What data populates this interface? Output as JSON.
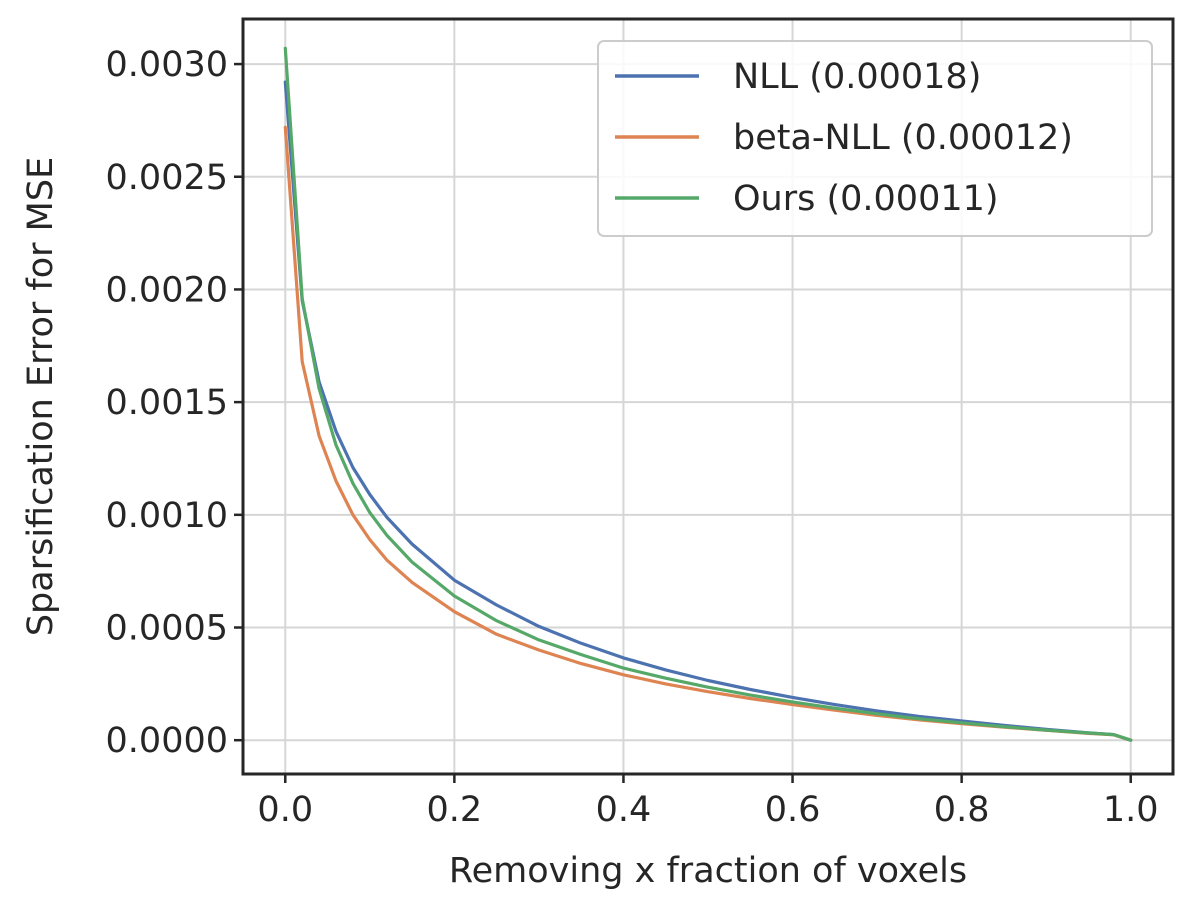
{
  "chart_data": {
    "type": "line",
    "title": "",
    "xlabel": "Removing x fraction of voxels",
    "ylabel": "Sparsification Error for MSE",
    "xlim": [
      -0.05,
      1.05
    ],
    "ylim": [
      -0.00015,
      0.0032
    ],
    "xticks": [
      0.0,
      0.2,
      0.4,
      0.6,
      0.8,
      1.0
    ],
    "xtick_labels": [
      "0.0",
      "0.2",
      "0.4",
      "0.6",
      "0.8",
      "1.0"
    ],
    "yticks": [
      0.0,
      0.0005,
      0.001,
      0.0015,
      0.002,
      0.0025,
      0.003
    ],
    "ytick_labels": [
      "0.0000",
      "0.0005",
      "0.0010",
      "0.0015",
      "0.0020",
      "0.0025",
      "0.0030"
    ],
    "grid": true,
    "legend_position": "top-right",
    "series": [
      {
        "name": "NLL (0.00018)",
        "color": "#4c72b0",
        "x": [
          0.0,
          0.02,
          0.04,
          0.06,
          0.08,
          0.1,
          0.12,
          0.15,
          0.2,
          0.25,
          0.3,
          0.35,
          0.4,
          0.45,
          0.5,
          0.55,
          0.6,
          0.65,
          0.7,
          0.75,
          0.8,
          0.85,
          0.9,
          0.95,
          0.98,
          1.0
        ],
        "y": [
          0.00292,
          0.00195,
          0.00159,
          0.00137,
          0.00121,
          0.00109,
          0.00099,
          0.00087,
          0.00071,
          0.0006,
          0.000505,
          0.00043,
          0.000365,
          0.000312,
          0.000265,
          0.000225,
          0.00019,
          0.000158,
          0.00013,
          0.000105,
          8.5e-05,
          6.6e-05,
          4.8e-05,
          3.3e-05,
          2.5e-05,
          0.0
        ]
      },
      {
        "name": "beta-NLL (0.00012)",
        "color": "#dd8452",
        "x": [
          0.0,
          0.02,
          0.04,
          0.06,
          0.08,
          0.1,
          0.12,
          0.15,
          0.2,
          0.25,
          0.3,
          0.35,
          0.4,
          0.45,
          0.5,
          0.55,
          0.6,
          0.65,
          0.7,
          0.75,
          0.8,
          0.85,
          0.9,
          0.95,
          0.98,
          1.0
        ],
        "y": [
          0.00272,
          0.00168,
          0.00135,
          0.00115,
          0.001,
          0.00089,
          0.0008,
          0.0007,
          0.00057,
          0.00047,
          0.0004,
          0.00034,
          0.00029,
          0.00025,
          0.000215,
          0.000185,
          0.000158,
          0.000133,
          0.00011,
          9e-05,
          7.3e-05,
          5.8e-05,
          4.4e-05,
          3e-05,
          2.4e-05,
          0.0
        ]
      },
      {
        "name": "Ours (0.00011)",
        "color": "#55a868",
        "x": [
          0.0,
          0.02,
          0.04,
          0.06,
          0.08,
          0.1,
          0.12,
          0.15,
          0.2,
          0.25,
          0.3,
          0.35,
          0.4,
          0.45,
          0.5,
          0.55,
          0.6,
          0.65,
          0.7,
          0.75,
          0.8,
          0.85,
          0.9,
          0.95,
          0.98,
          1.0
        ],
        "y": [
          0.00307,
          0.00196,
          0.00156,
          0.00131,
          0.00114,
          0.00101,
          0.00091,
          0.00079,
          0.00064,
          0.00053,
          0.000445,
          0.00038,
          0.00032,
          0.000275,
          0.000235,
          0.0002,
          0.00017,
          0.000142,
          0.000117,
          9.5e-05,
          7.7e-05,
          6e-05,
          4.5e-05,
          3.2e-05,
          2.5e-05,
          0.0
        ]
      }
    ]
  }
}
